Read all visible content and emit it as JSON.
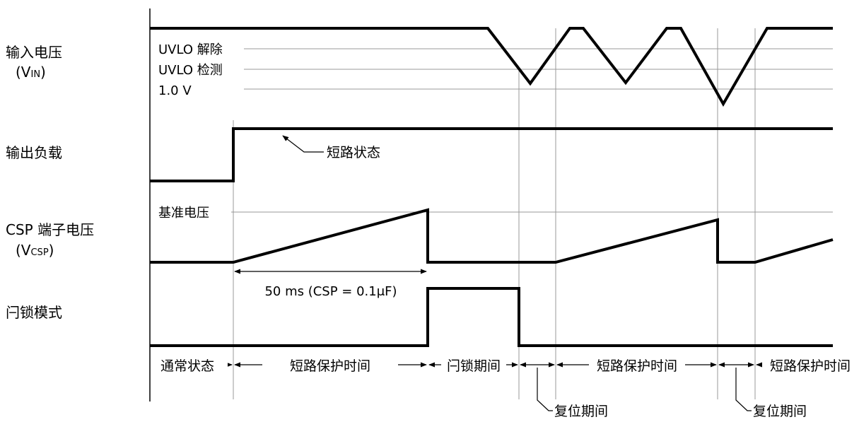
{
  "signals": {
    "vin": {
      "name": "输入电压",
      "symbol_prefix": "(V",
      "symbol_sub": "IN",
      "symbol_suffix": ")"
    },
    "load": {
      "name": "输出负载"
    },
    "csp": {
      "name": "CSP 端子电压",
      "symbol_prefix": "(V",
      "symbol_sub": "CSP",
      "symbol_suffix": ")"
    },
    "latch": {
      "name": "闩锁模式"
    }
  },
  "levels": {
    "uvlo_release": "UVLO 解除",
    "uvlo_detect": "UVLO 检测",
    "v1": "1.0 V",
    "reference": "基准电压"
  },
  "annotations": {
    "short_state": "短路状态",
    "timer": "50 ms (CSP = 0.1μF)",
    "reset1": "复位期间",
    "reset2": "复位期间"
  },
  "periods": [
    "通常状态",
    "短路保护时间",
    "闩锁期间",
    "短路保护时间",
    "短路保护时间"
  ]
}
